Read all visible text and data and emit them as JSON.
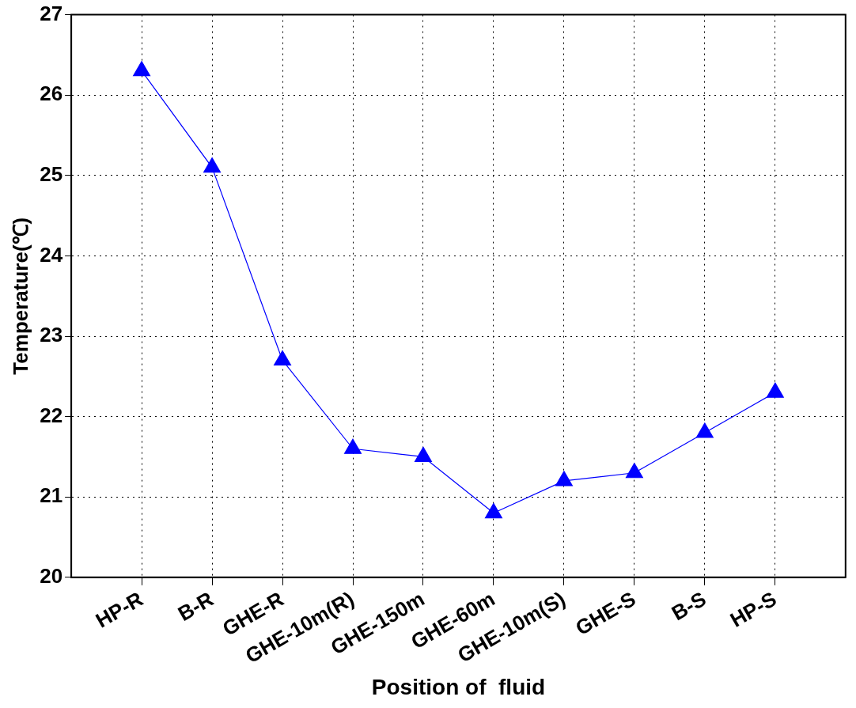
{
  "chart_data": {
    "type": "line",
    "xlabel": "Position of  fluid",
    "ylabel": "Temperature(℃)",
    "categories": [
      "HP-R",
      "B-R",
      "GHE-R",
      "GHE-10m(R)",
      "GHE-150m",
      "GHE-60m",
      "GHE-10m(S)",
      "GHE-S",
      "B-S",
      "HP-S"
    ],
    "series": [
      {
        "color": "#0000ff",
        "values": [
          26.3,
          25.1,
          22.7,
          21.6,
          21.5,
          20.8,
          21.2,
          21.3,
          21.8,
          22.3
        ]
      }
    ],
    "ylim": [
      20,
      27
    ],
    "yticks": [
      20,
      21,
      22,
      23,
      24,
      25,
      26,
      27
    ],
    "grid": true,
    "legend": false,
    "marker": "triangle",
    "line_style": "solid"
  }
}
